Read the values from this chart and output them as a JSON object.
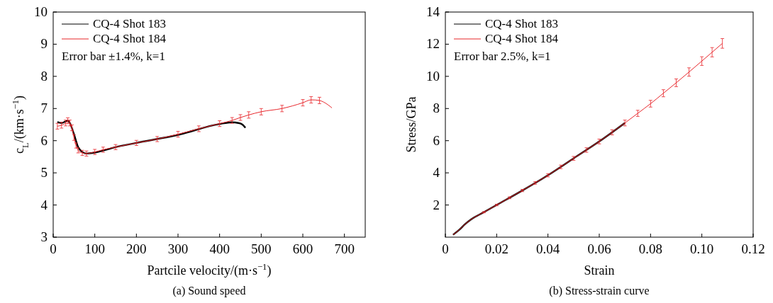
{
  "chart_data": [
    {
      "type": "line",
      "title": "(a) Sound speed",
      "xlabel": "Partcile velocity/(m·s$^{−1}$)",
      "ylabel": "c$_{L}$/(km·s$^{−1}$)",
      "xlim": [
        0,
        750
      ],
      "xticks": [
        0,
        100,
        200,
        300,
        400,
        500,
        600,
        700
      ],
      "ylim": [
        3,
        10
      ],
      "yticks": [
        3,
        4,
        5,
        6,
        7,
        8,
        9,
        10
      ],
      "legend": "top left",
      "grid": false,
      "annotations": [
        "Error bar ±1.4%, k=1"
      ],
      "series": [
        {
          "name": "CQ-4 Shot 183",
          "color": "#000000",
          "x": [
            10,
            20,
            30,
            35,
            40,
            50,
            60,
            70,
            80,
            100,
            150,
            200,
            300,
            400,
            430,
            445,
            455,
            462
          ],
          "values": [
            6.58,
            6.55,
            6.6,
            6.62,
            6.55,
            6.2,
            5.8,
            5.65,
            5.6,
            5.63,
            5.8,
            5.93,
            6.18,
            6.52,
            6.57,
            6.55,
            6.5,
            6.4
          ]
        },
        {
          "name": "CQ-4 Shot 184",
          "color": "#e8262b",
          "x": [
            10,
            20,
            30,
            35,
            40,
            45,
            50,
            55,
            60,
            70,
            80,
            100,
            120,
            150,
            200,
            250,
            300,
            350,
            400,
            430,
            450,
            470,
            500,
            550,
            600,
            620,
            640,
            650,
            670
          ],
          "values": [
            6.45,
            6.48,
            6.55,
            6.62,
            6.55,
            6.4,
            6.1,
            5.85,
            5.7,
            5.62,
            5.6,
            5.65,
            5.72,
            5.8,
            5.93,
            6.05,
            6.2,
            6.37,
            6.53,
            6.63,
            6.72,
            6.8,
            6.9,
            7.0,
            7.18,
            7.27,
            7.25,
            7.2,
            7.02
          ],
          "errors": [
            0.09,
            0.09,
            0.09,
            0.09,
            0.09,
            0.09,
            0.09,
            0.08,
            0.08,
            0.08,
            0.08,
            0.08,
            0.08,
            0.08,
            0.08,
            0.08,
            0.09,
            0.09,
            0.09,
            0.09,
            0.09,
            0.1,
            0.1,
            0.1,
            0.1,
            0.1,
            0.1,
            null,
            null
          ]
        }
      ]
    },
    {
      "type": "line",
      "title": "(b) Stress-strain curve",
      "xlabel": "Strain",
      "ylabel": "Stress/GPa",
      "xlim": [
        0,
        0.12
      ],
      "xticks": [
        0,
        0.02,
        0.04,
        0.06,
        0.08,
        {
          "value": 0.1,
          "label": "0.10"
        },
        0.12
      ],
      "ylim": [
        0,
        14
      ],
      "yticks": [
        2,
        4,
        6,
        8,
        10,
        12,
        14
      ],
      "legend": "top left",
      "grid": false,
      "annotations": [
        "Error bar 2.5%, k=1"
      ],
      "series": [
        {
          "name": "CQ-4 Shot 183",
          "color": "#000000",
          "x": [
            0.003,
            0.005,
            0.008,
            0.01,
            0.015,
            0.02,
            0.03,
            0.04,
            0.05,
            0.06,
            0.07
          ],
          "values": [
            0.15,
            0.4,
            0.85,
            1.1,
            1.55,
            2.0,
            2.9,
            3.85,
            4.9,
            5.95,
            7.1
          ]
        },
        {
          "name": "CQ-4 Shot 184",
          "color": "#e8262b",
          "x": [
            0.003,
            0.005,
            0.008,
            0.01,
            0.015,
            0.02,
            0.025,
            0.03,
            0.035,
            0.04,
            0.045,
            0.05,
            0.055,
            0.06,
            0.065,
            0.07,
            0.075,
            0.08,
            0.085,
            0.09,
            0.095,
            0.1,
            0.104,
            0.108
          ],
          "values": [
            0.15,
            0.4,
            0.85,
            1.1,
            1.55,
            2.0,
            2.45,
            2.9,
            3.37,
            3.85,
            4.37,
            4.9,
            5.42,
            5.95,
            6.52,
            7.1,
            7.7,
            8.3,
            8.95,
            9.6,
            10.27,
            10.95,
            11.5,
            12.05
          ],
          "errors": [
            null,
            null,
            null,
            null,
            0.04,
            0.05,
            0.06,
            0.07,
            0.08,
            0.1,
            0.11,
            0.12,
            0.14,
            0.15,
            0.16,
            0.18,
            0.19,
            0.21,
            0.22,
            0.24,
            0.26,
            0.27,
            0.29,
            0.3
          ]
        }
      ]
    }
  ]
}
